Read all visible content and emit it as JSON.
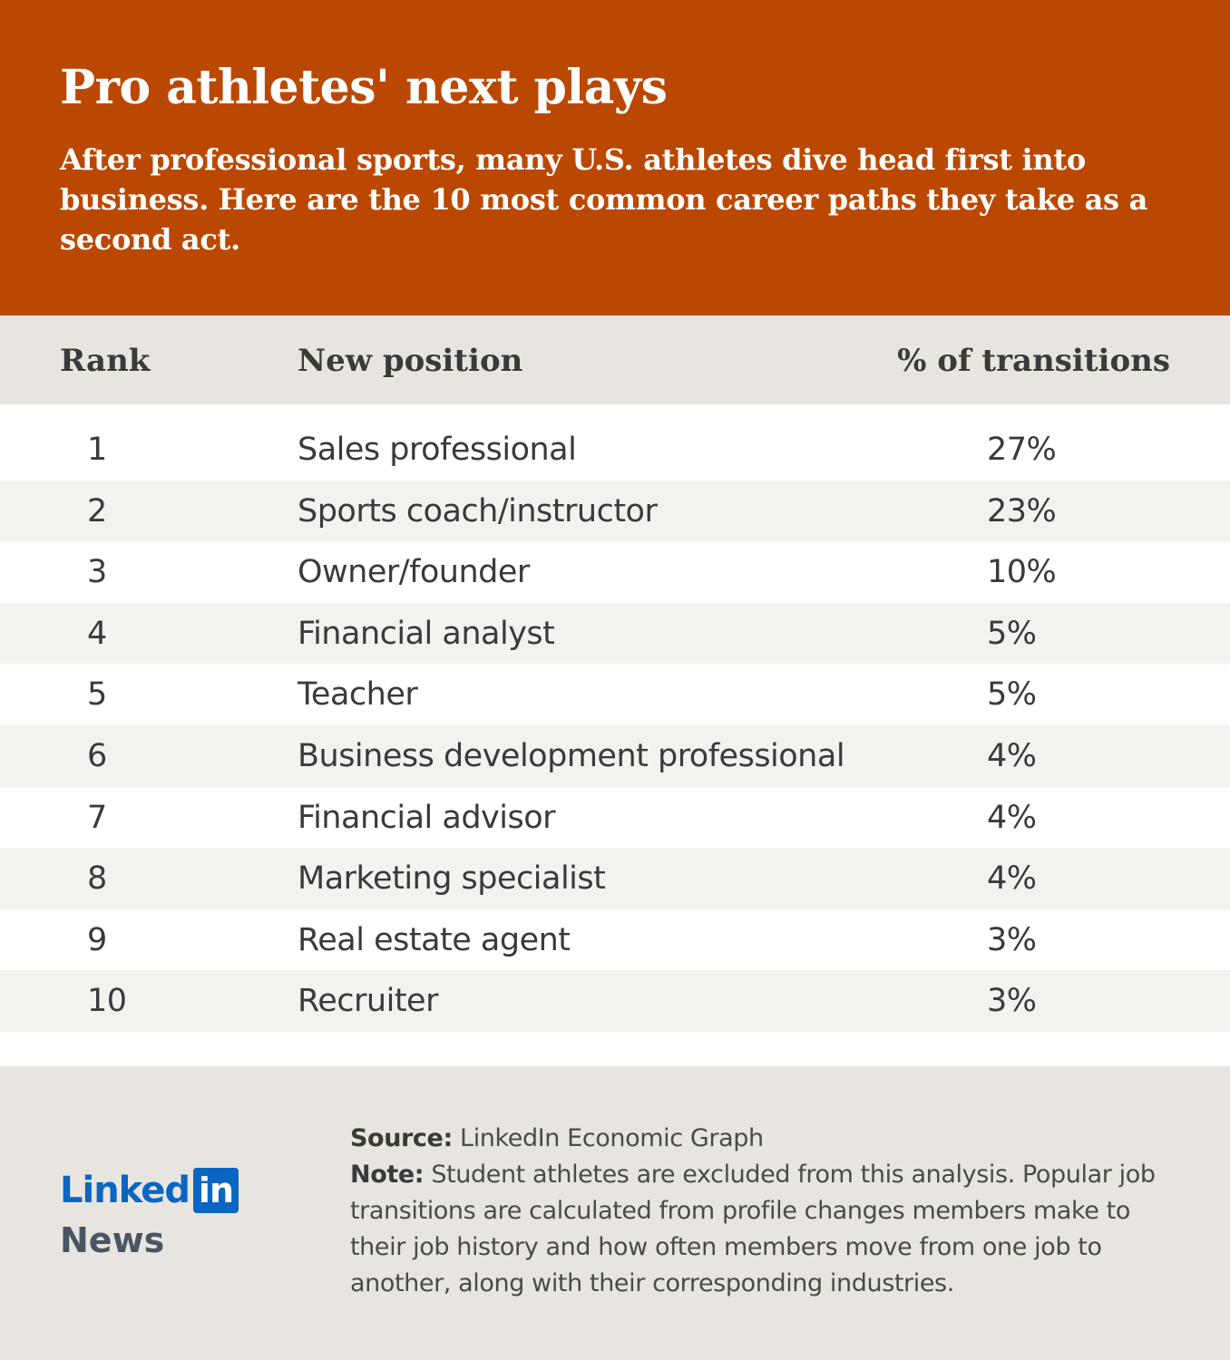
{
  "header": {
    "title": "Pro athletes' next plays",
    "subtitle": "After professional sports, many U.S. athletes dive head first into business. Here are the 10 most common career paths they take as a second act."
  },
  "table": {
    "columns": [
      "Rank",
      "New position",
      "% of transitions"
    ],
    "rows": [
      {
        "rank": "1",
        "position": "Sales professional",
        "pct": "27%"
      },
      {
        "rank": "2",
        "position": "Sports coach/instructor",
        "pct": "23%"
      },
      {
        "rank": "3",
        "position": "Owner/founder",
        "pct": "10%"
      },
      {
        "rank": "4",
        "position": "Financial analyst",
        "pct": "5%"
      },
      {
        "rank": "5",
        "position": "Teacher",
        "pct": "5%"
      },
      {
        "rank": "6",
        "position": "Business development professional",
        "pct": "4%"
      },
      {
        "rank": "7",
        "position": "Financial advisor",
        "pct": "4%"
      },
      {
        "rank": "8",
        "position": "Marketing specialist",
        "pct": "4%"
      },
      {
        "rank": "9",
        "position": "Real estate agent",
        "pct": "3%"
      },
      {
        "rank": "10",
        "position": "Recruiter",
        "pct": "3%"
      }
    ]
  },
  "footer": {
    "logo_word": "Linked",
    "logo_box": "in",
    "logo_news": "News",
    "source_label": "Source:",
    "source_text": "LinkedIn Economic Graph",
    "note_label": "Note:",
    "note_text": "Student athletes are excluded from this analysis. Popular job transitions are calculated from profile changes members make to their job history and how often members move from one job to another, along with their corresponding industries."
  },
  "colors": {
    "header_bg": "#bb4800",
    "band_bg": "#e8e5e0",
    "row_alt_bg": "#f4f2ee",
    "linkedin_blue": "#0a66c2"
  }
}
